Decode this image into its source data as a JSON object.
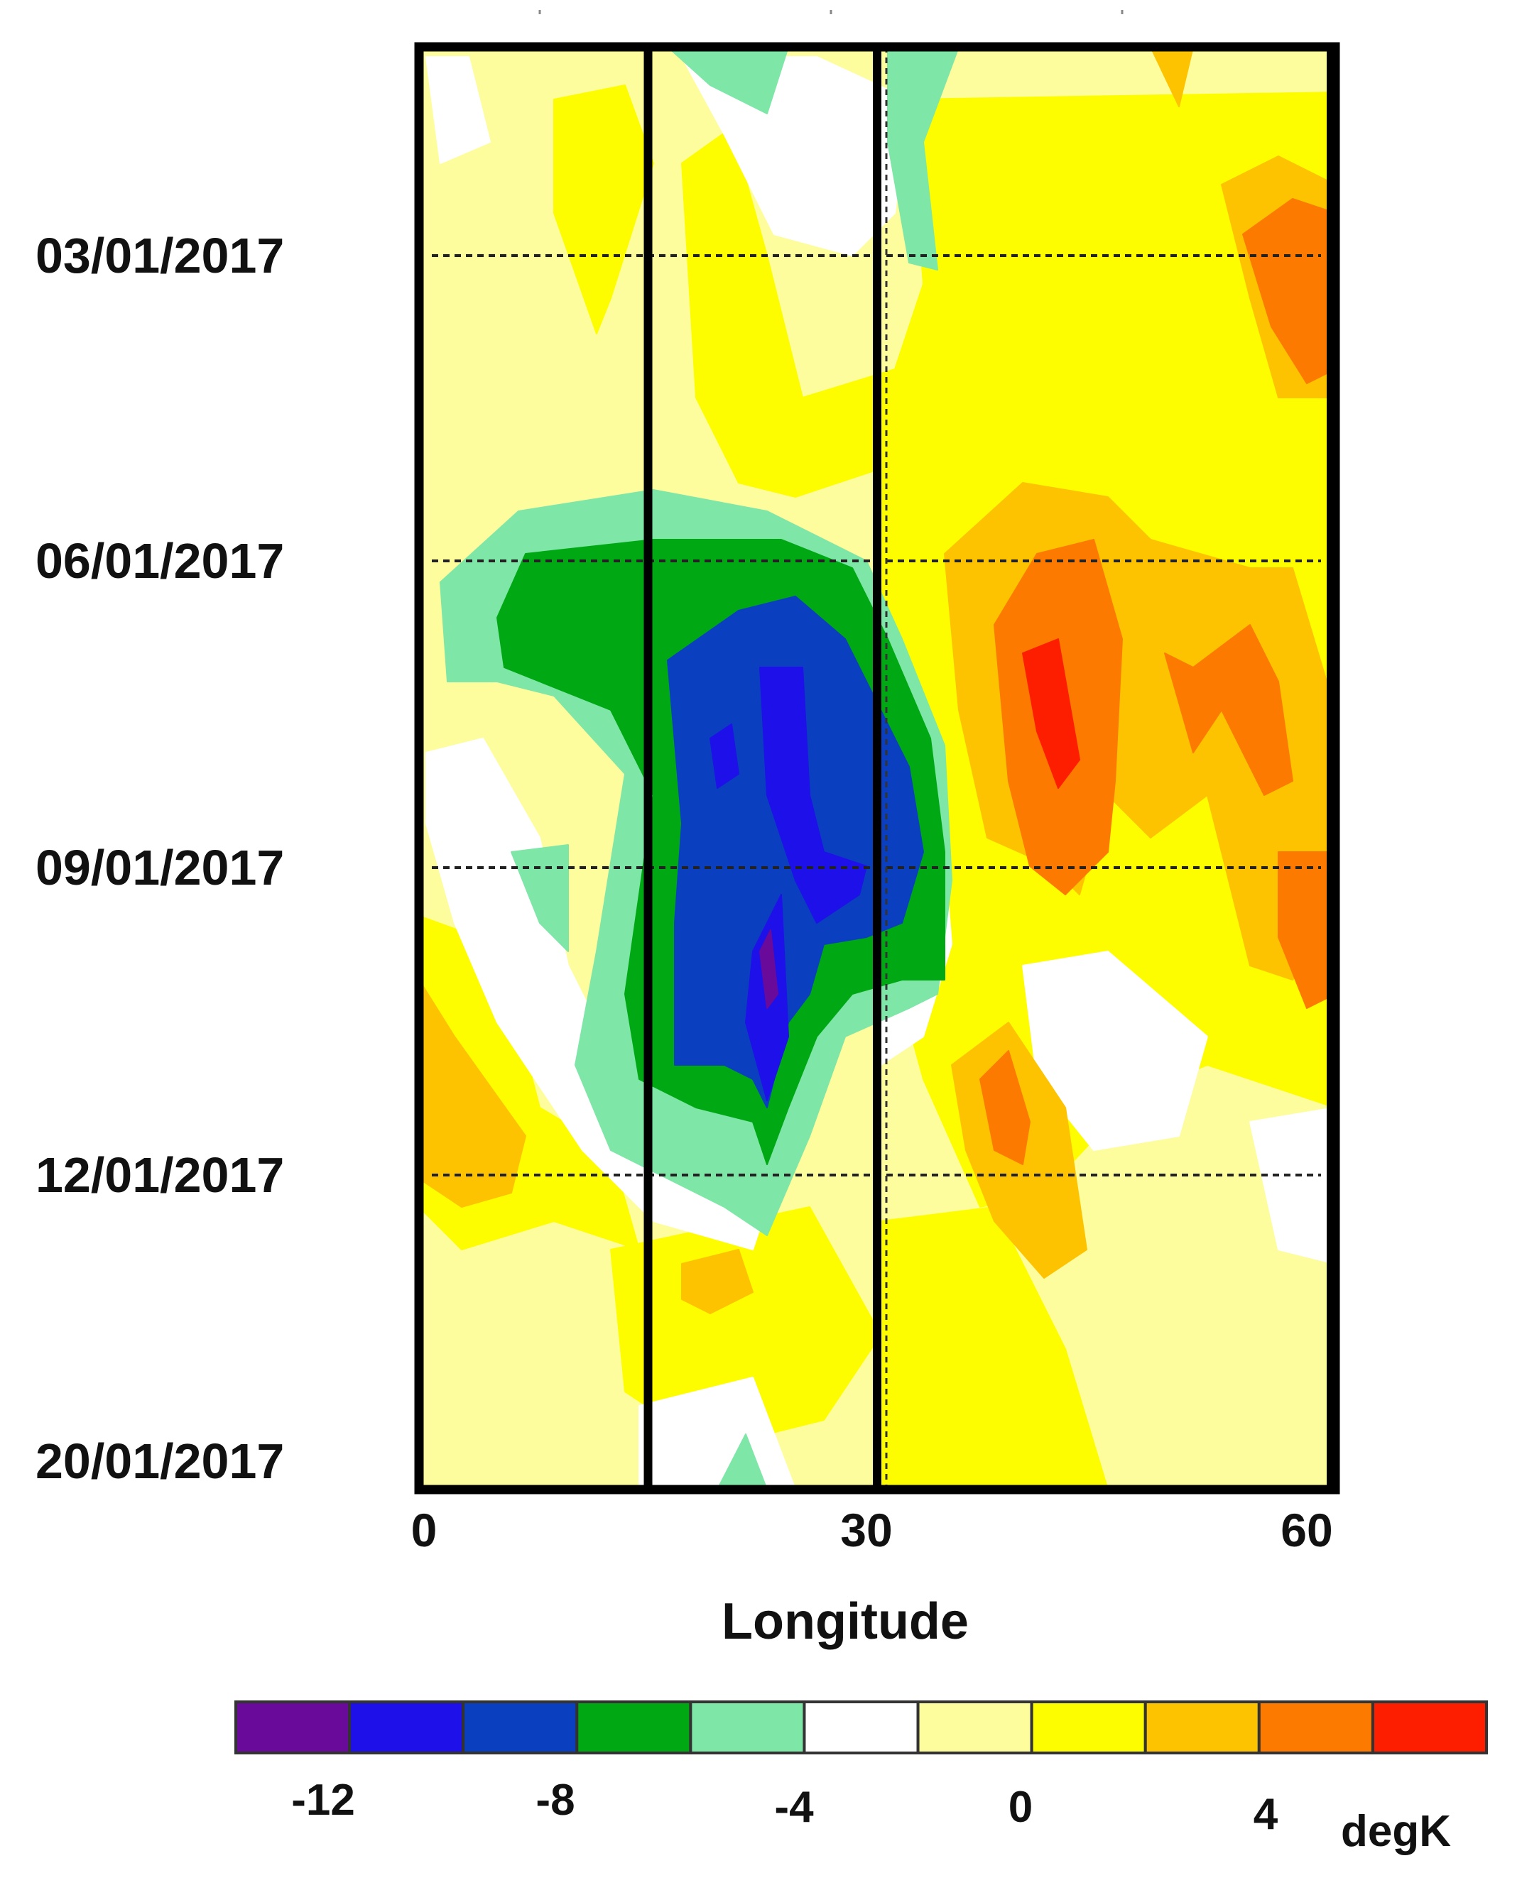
{
  "chart_data": {
    "type": "heatmap",
    "xlabel": "Longitude",
    "units": "degK",
    "x_ticks": [
      "0",
      "30",
      "60"
    ],
    "xlim": [
      0,
      60
    ],
    "y_labels": [
      "03/01/2017",
      "06/01/2017",
      "09/01/2017",
      "12/01/2017",
      "20/01/2017"
    ],
    "vertical_lines_at_longitude": [
      15,
      30,
      60
    ],
    "colorbar": {
      "colors": [
        "#6a0a9a",
        "#1e10e8",
        "#0a3fc0",
        "#00a814",
        "#7ee6a6",
        "#ffffff",
        "#fefd9e",
        "#fdfd00",
        "#fdc300",
        "#fd7a00",
        "#fd1e00"
      ],
      "tick_labels": [
        "-12",
        "-8",
        "-4",
        "0",
        "4"
      ],
      "tick_values": [
        -12,
        -8,
        -4,
        0,
        4
      ]
    },
    "anomaly_regions": [
      {
        "name": "cold anomaly",
        "center_lon": 23,
        "center_date": "09/01/2017",
        "min_value": -12
      },
      {
        "name": "warm anomaly",
        "center_lon": 42,
        "center_date": "07/01/2017",
        "max_value": 6
      },
      {
        "name": "warm anomaly",
        "center_lon": 58,
        "center_date": "03/01/2017",
        "max_value": 4
      },
      {
        "name": "warm anomaly",
        "center_lon": 58,
        "center_date": "10/01/2017",
        "max_value": 4
      }
    ]
  },
  "axis": {
    "xlabel": "Longitude",
    "units_label": "degK"
  }
}
